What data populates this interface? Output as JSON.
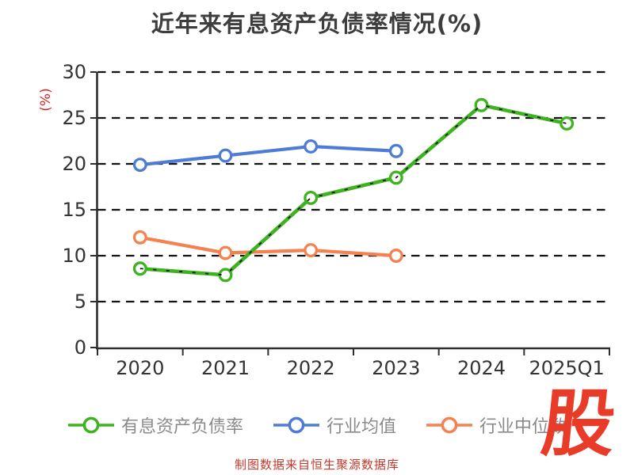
{
  "title": "近年来有息资产负债率情况(%)",
  "y_axis_unit_label": "(%)",
  "footer_note": "制图数据来自恒生聚源数据库",
  "watermark_text": "股",
  "colors": {
    "background": "#ffffff",
    "title_text": "#3d3d3d",
    "axis_text": "#333333",
    "axis_line": "#2e2e2e",
    "grid_line": "#121212",
    "legend_text": "#8a8a8a",
    "unit_label": "#e02121",
    "footer_text": "#c5392b",
    "watermark_red": "#e83b28",
    "marker_fill": "#ffffff",
    "series_main": "#3db31f",
    "series_avg": "#4d7bd6",
    "series_median": "#f4814f",
    "sketch_overlay": "#0a0a0a"
  },
  "chart_data": {
    "type": "line",
    "title": "近年来有息资产负债率情况(%)",
    "xlabel": "",
    "ylabel": "(%)",
    "categories": [
      "2020",
      "2021",
      "2022",
      "2023",
      "2024",
      "2025Q1"
    ],
    "series": [
      {
        "name": "有息资产负债率",
        "color_key": "series_main",
        "sketch_overlay": true,
        "values": [
          8.6,
          7.9,
          16.3,
          18.5,
          26.4,
          24.4
        ]
      },
      {
        "name": "行业均值",
        "color_key": "series_avg",
        "sketch_overlay": false,
        "values": [
          19.9,
          20.9,
          21.9,
          21.4,
          null,
          null
        ]
      },
      {
        "name": "行业中位数",
        "color_key": "series_median",
        "sketch_overlay": false,
        "values": [
          12.0,
          10.3,
          10.6,
          10.0,
          null,
          null
        ]
      }
    ],
    "ylim": [
      0,
      30
    ],
    "yticks": [
      0,
      5,
      10,
      15,
      20,
      25,
      30
    ],
    "grid": "horizontal-dashed",
    "legend_position": "bottom"
  },
  "legend": {
    "items": [
      {
        "label": "有息资产负债率",
        "color_key": "series_main"
      },
      {
        "label": "行业均值",
        "color_key": "series_avg"
      },
      {
        "label": "行业中位数",
        "color_key": "series_median"
      }
    ]
  }
}
